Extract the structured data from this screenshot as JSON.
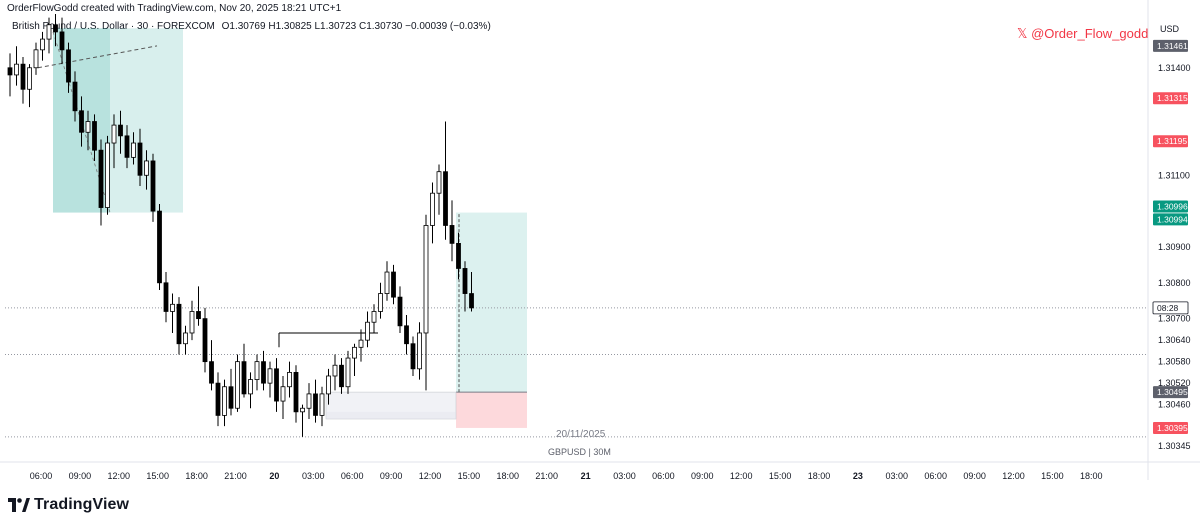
{
  "header": {
    "created_by": "OrderFlowGodd created with TradingView.com, Nov 20, 2025 18:21 UTC+1"
  },
  "legend": {
    "symbol": "British Pound / U.S. Dollar · 30 · FOREXCOM",
    "open": "O1.30769",
    "high": "H1.30825",
    "low": "L1.30723",
    "close": "C1.30730",
    "change": "−0.00039 (−0.03%)"
  },
  "watermark": "𝕏 @Order_Flow_godd",
  "axis": {
    "currency": "USD"
  },
  "footer": {
    "brand": "TradingView",
    "symbol_interval": "GBPUSD | 30M",
    "date": "20/11/2025"
  },
  "colors": {
    "up": "#ffffff",
    "down": "#000000",
    "wick": "#000000",
    "profit_zone": "#26a69a",
    "loss_zone": "#f7525f",
    "watermark": "#f23645",
    "price_badge_dark": "#5d606b",
    "price_badge_red": "#f7525f",
    "price_badge_green": "#089981"
  },
  "chart_data": {
    "type": "candlestick",
    "symbol": "GBPUSD",
    "interval": "30",
    "ylim": [
      1.303,
      1.3155
    ],
    "yticks": [
      1.314,
      1.311,
      1.309,
      1.308,
      1.307,
      1.3064,
      1.3058,
      1.3052,
      1.3046,
      1.30345
    ],
    "xticks": [
      {
        "label": "06:00",
        "bold": false
      },
      {
        "label": "09:00",
        "bold": false
      },
      {
        "label": "12:00",
        "bold": false
      },
      {
        "label": "15:00",
        "bold": false
      },
      {
        "label": "18:00",
        "bold": false
      },
      {
        "label": "21:00",
        "bold": false
      },
      {
        "label": "20",
        "bold": true
      },
      {
        "label": "03:00",
        "bold": false
      },
      {
        "label": "06:00",
        "bold": false
      },
      {
        "label": "09:00",
        "bold": false
      },
      {
        "label": "12:00",
        "bold": false
      },
      {
        "label": "15:00",
        "bold": false
      },
      {
        "label": "18:00",
        "bold": false
      },
      {
        "label": "21:00",
        "bold": false
      },
      {
        "label": "21",
        "bold": true
      },
      {
        "label": "03:00",
        "bold": false
      },
      {
        "label": "06:00",
        "bold": false
      },
      {
        "label": "09:00",
        "bold": false
      },
      {
        "label": "12:00",
        "bold": false
      },
      {
        "label": "15:00",
        "bold": false
      },
      {
        "label": "18:00",
        "bold": false
      },
      {
        "label": "23",
        "bold": true
      },
      {
        "label": "03:00",
        "bold": false
      },
      {
        "label": "06:00",
        "bold": false
      },
      {
        "label": "09:00",
        "bold": false
      },
      {
        "label": "12:00",
        "bold": false
      },
      {
        "label": "15:00",
        "bold": false
      },
      {
        "label": "18:00",
        "bold": false
      }
    ],
    "price_badges": [
      {
        "value": "1.31461",
        "style": "dark"
      },
      {
        "value": "1.31315",
        "style": "red"
      },
      {
        "value": "1.31195",
        "style": "red"
      },
      {
        "value": "1.30996",
        "style": "green"
      },
      {
        "value": "1.30994",
        "style": "green"
      },
      {
        "value": "08:28",
        "style": "dark-outline"
      },
      {
        "value": "1.30495",
        "style": "dark"
      },
      {
        "value": "1.30395",
        "style": "red"
      }
    ],
    "candles": [
      [
        1.314,
        1.3144,
        1.3132,
        1.3138
      ],
      [
        1.3138,
        1.3146,
        1.3135,
        1.3141
      ],
      [
        1.3141,
        1.3143,
        1.313,
        1.3134
      ],
      [
        1.3134,
        1.3141,
        1.3129,
        1.314
      ],
      [
        1.314,
        1.3147,
        1.3138,
        1.3145
      ],
      [
        1.3145,
        1.315,
        1.3142,
        1.3148
      ],
      [
        1.3148,
        1.3154,
        1.3144,
        1.3152
      ],
      [
        1.3152,
        1.3155,
        1.3146,
        1.315
      ],
      [
        1.315,
        1.3154,
        1.3141,
        1.3145
      ],
      [
        1.3145,
        1.3147,
        1.3133,
        1.3136
      ],
      [
        1.3136,
        1.3139,
        1.3125,
        1.3128
      ],
      [
        1.3128,
        1.3132,
        1.3118,
        1.3122
      ],
      [
        1.3122,
        1.3128,
        1.3117,
        1.3125
      ],
      [
        1.3125,
        1.3127,
        1.3114,
        1.3117
      ],
      [
        1.3117,
        1.312,
        1.3096,
        1.3101
      ],
      [
        1.3101,
        1.3121,
        1.3099,
        1.3119
      ],
      [
        1.3119,
        1.3127,
        1.3112,
        1.3124
      ],
      [
        1.3124,
        1.3128,
        1.3116,
        1.3121
      ],
      [
        1.3121,
        1.3124,
        1.3112,
        1.3115
      ],
      [
        1.3115,
        1.3122,
        1.3113,
        1.3119
      ],
      [
        1.3119,
        1.3123,
        1.3107,
        1.311
      ],
      [
        1.311,
        1.3117,
        1.3106,
        1.3114
      ],
      [
        1.3114,
        1.3116,
        1.3097,
        1.31
      ],
      [
        1.31,
        1.3102,
        1.3078,
        1.308
      ],
      [
        1.308,
        1.3083,
        1.3069,
        1.3072
      ],
      [
        1.3072,
        1.3077,
        1.3066,
        1.3074
      ],
      [
        1.3074,
        1.3076,
        1.306,
        1.3063
      ],
      [
        1.3063,
        1.3068,
        1.306,
        1.3066
      ],
      [
        1.3066,
        1.3075,
        1.3064,
        1.3072
      ],
      [
        1.3072,
        1.3079,
        1.3068,
        1.307
      ],
      [
        1.307,
        1.3073,
        1.3055,
        1.3058
      ],
      [
        1.3058,
        1.3064,
        1.305,
        1.3052
      ],
      [
        1.3052,
        1.3055,
        1.304,
        1.3043
      ],
      [
        1.3043,
        1.3053,
        1.304,
        1.3051
      ],
      [
        1.3051,
        1.3056,
        1.3043,
        1.3045
      ],
      [
        1.3045,
        1.306,
        1.3044,
        1.3058
      ],
      [
        1.3058,
        1.3063,
        1.3048,
        1.3049
      ],
      [
        1.3049,
        1.3055,
        1.3045,
        1.3053
      ],
      [
        1.3053,
        1.306,
        1.305,
        1.3058
      ],
      [
        1.3058,
        1.3061,
        1.305,
        1.3052
      ],
      [
        1.3052,
        1.3058,
        1.3048,
        1.3056
      ],
      [
        1.3056,
        1.3059,
        1.3044,
        1.3047
      ],
      [
        1.3047,
        1.3054,
        1.3042,
        1.3051
      ],
      [
        1.3051,
        1.3058,
        1.3048,
        1.3055
      ],
      [
        1.3055,
        1.3057,
        1.3041,
        1.3044
      ],
      [
        1.3044,
        1.3046,
        1.3037,
        1.3045
      ],
      [
        1.3045,
        1.3052,
        1.3042,
        1.3049
      ],
      [
        1.3049,
        1.3053,
        1.3041,
        1.3043
      ],
      [
        1.3043,
        1.3051,
        1.304,
        1.3049
      ],
      [
        1.3049,
        1.3056,
        1.3046,
        1.3054
      ],
      [
        1.3054,
        1.306,
        1.305,
        1.3057
      ],
      [
        1.3057,
        1.3059,
        1.3049,
        1.3051
      ],
      [
        1.3051,
        1.3061,
        1.3049,
        1.3059
      ],
      [
        1.3059,
        1.3063,
        1.3054,
        1.3062
      ],
      [
        1.3062,
        1.3067,
        1.3058,
        1.3064
      ],
      [
        1.3064,
        1.3072,
        1.3062,
        1.3069
      ],
      [
        1.3069,
        1.3074,
        1.3066,
        1.3072
      ],
      [
        1.3072,
        1.308,
        1.307,
        1.3077
      ],
      [
        1.3077,
        1.3086,
        1.3075,
        1.3083
      ],
      [
        1.3083,
        1.3085,
        1.3074,
        1.3076
      ],
      [
        1.3076,
        1.3079,
        1.3066,
        1.3068
      ],
      [
        1.3068,
        1.3071,
        1.306,
        1.3063
      ],
      [
        1.3063,
        1.3065,
        1.3054,
        1.3056
      ],
      [
        1.3056,
        1.3069,
        1.3053,
        1.3066
      ],
      [
        1.3066,
        1.3099,
        1.305,
        1.3096
      ],
      [
        1.3096,
        1.3108,
        1.3091,
        1.3105
      ],
      [
        1.3105,
        1.3113,
        1.3099,
        1.3111
      ],
      [
        1.3111,
        1.3125,
        1.3092,
        1.3096
      ],
      [
        1.3096,
        1.3103,
        1.3086,
        1.3091
      ],
      [
        1.3091,
        1.3094,
        1.3081,
        1.3084
      ],
      [
        1.3084,
        1.3086,
        1.3072,
        1.3077
      ],
      [
        1.3077,
        1.3083,
        1.3072,
        1.3073
      ]
    ]
  }
}
